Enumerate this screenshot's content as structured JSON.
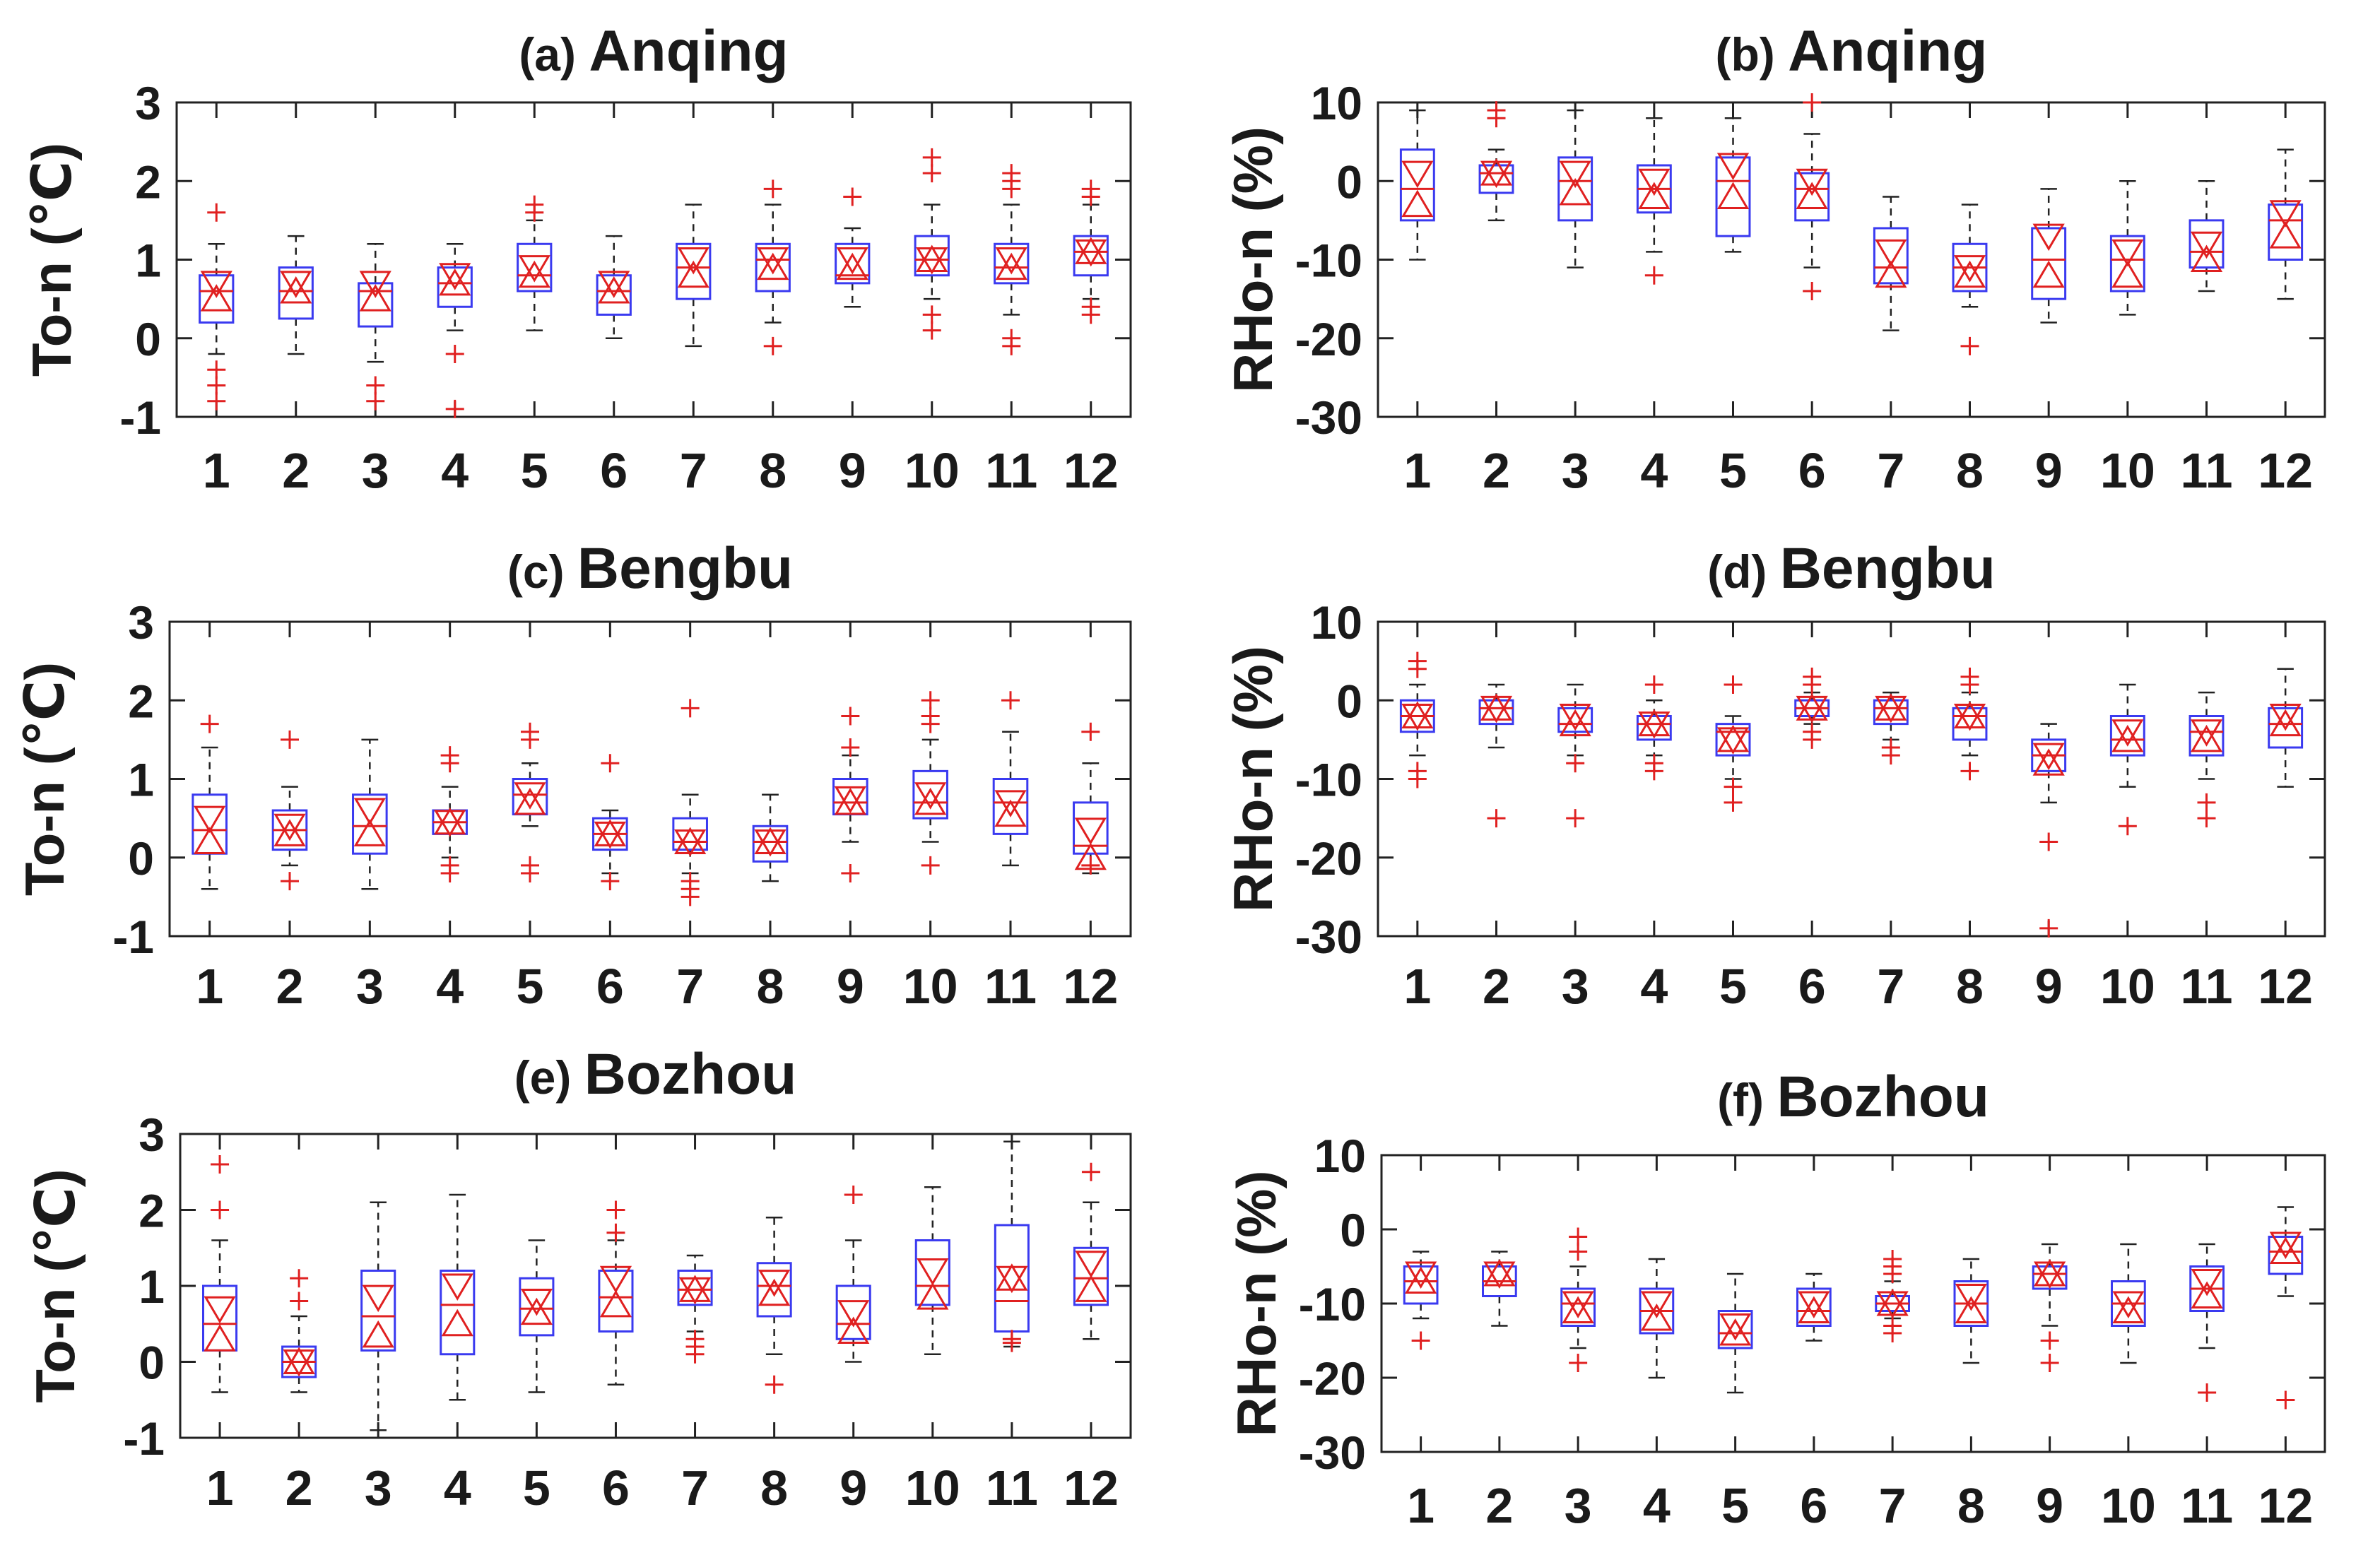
{
  "colors": {
    "box": "#3a3af0",
    "median": "#e02020",
    "outlier": "#e02020",
    "whisker": "#222222",
    "axis": "#222222"
  },
  "chart_data": [
    {
      "type": "box",
      "panel": "(a)",
      "station": "Anqing",
      "ylabel": "To-n (℃)",
      "ylim": [
        -1,
        3
      ],
      "yticks": [
        "-1",
        "0",
        "1",
        "2",
        "3"
      ],
      "categories": [
        "1",
        "2",
        "3",
        "4",
        "5",
        "6",
        "7",
        "8",
        "9",
        "10",
        "11",
        "12"
      ],
      "boxes": [
        {
          "q1": 0.2,
          "med": 0.6,
          "q3": 0.8,
          "lo": -0.2,
          "hi": 1.2,
          "mean": 0.5,
          "up": 0.7,
          "out": [
            1.6,
            -0.4,
            -0.6,
            -0.8
          ]
        },
        {
          "q1": 0.25,
          "med": 0.6,
          "q3": 0.9,
          "lo": -0.2,
          "hi": 1.3,
          "mean": 0.6,
          "up": 0.7,
          "out": []
        },
        {
          "q1": 0.15,
          "med": 0.6,
          "q3": 0.7,
          "lo": -0.3,
          "hi": 1.2,
          "mean": 0.5,
          "up": 0.7,
          "out": [
            -0.6,
            -0.8
          ]
        },
        {
          "q1": 0.4,
          "med": 0.7,
          "q3": 0.9,
          "lo": 0.1,
          "hi": 1.2,
          "mean": 0.7,
          "up": 0.8,
          "out": [
            -0.2,
            -0.9
          ]
        },
        {
          "q1": 0.6,
          "med": 0.8,
          "q3": 1.2,
          "lo": 0.1,
          "hi": 1.5,
          "mean": 0.8,
          "up": 0.9,
          "out": [
            1.6,
            1.7
          ]
        },
        {
          "q1": 0.3,
          "med": 0.6,
          "q3": 0.8,
          "lo": 0.0,
          "hi": 1.3,
          "mean": 0.6,
          "up": 0.7,
          "out": []
        },
        {
          "q1": 0.5,
          "med": 0.9,
          "q3": 1.2,
          "lo": -0.1,
          "hi": 1.7,
          "mean": 0.8,
          "up": 1.0,
          "out": []
        },
        {
          "q1": 0.6,
          "med": 1.0,
          "q3": 1.2,
          "lo": 0.2,
          "hi": 1.7,
          "mean": 0.9,
          "up": 1.0,
          "out": [
            1.9,
            -0.1
          ]
        },
        {
          "q1": 0.7,
          "med": 0.8,
          "q3": 1.2,
          "lo": 0.4,
          "hi": 1.4,
          "mean": 0.9,
          "up": 1.0,
          "out": [
            1.8
          ]
        },
        {
          "q1": 0.8,
          "med": 1.0,
          "q3": 1.3,
          "lo": 0.5,
          "hi": 1.7,
          "mean": 1.0,
          "up": 1.0,
          "out": [
            2.3,
            2.1,
            0.3,
            0.1
          ]
        },
        {
          "q1": 0.7,
          "med": 0.9,
          "q3": 1.2,
          "lo": 0.3,
          "hi": 1.7,
          "mean": 0.9,
          "up": 1.0,
          "out": [
            2.1,
            2.0,
            1.9,
            0.0,
            -0.1
          ]
        },
        {
          "q1": 0.8,
          "med": 1.1,
          "q3": 1.3,
          "lo": 0.5,
          "hi": 1.7,
          "mean": 1.1,
          "up": 1.1,
          "out": [
            1.9,
            1.8,
            0.4,
            0.3
          ]
        }
      ]
    },
    {
      "type": "box",
      "panel": "(b)",
      "station": "Anqing",
      "ylabel": "RHo-n (%)",
      "ylim": [
        -30,
        10
      ],
      "yticks": [
        "-30",
        "-20",
        "-10",
        "0",
        "10"
      ],
      "categories": [
        "1",
        "2",
        "3",
        "4",
        "5",
        "6",
        "7",
        "8",
        "9",
        "10",
        "11",
        "12"
      ],
      "boxes": [
        {
          "q1": -5,
          "med": -1,
          "q3": 4,
          "lo": -10,
          "hi": 9,
          "mean": -3,
          "up": 1,
          "out": []
        },
        {
          "q1": -1.5,
          "med": 1,
          "q3": 2,
          "lo": -5,
          "hi": 4,
          "mean": 1,
          "up": 1,
          "out": [
            8,
            9
          ]
        },
        {
          "q1": -5,
          "med": 0,
          "q3": 3,
          "lo": -11,
          "hi": 9,
          "mean": -1.5,
          "up": 1,
          "out": []
        },
        {
          "q1": -4,
          "med": -1,
          "q3": 2,
          "lo": -9,
          "hi": 8,
          "mean": -2,
          "up": 0,
          "out": [
            -12
          ]
        },
        {
          "q1": -7,
          "med": 0,
          "q3": 3,
          "lo": -9,
          "hi": 8,
          "mean": -2,
          "up": 2,
          "out": []
        },
        {
          "q1": -5,
          "med": -1,
          "q3": 1,
          "lo": -11,
          "hi": 6,
          "mean": -2,
          "up": 0,
          "out": [
            -14,
            10
          ]
        },
        {
          "q1": -13,
          "med": -11,
          "q3": -6,
          "lo": -19,
          "hi": -2,
          "mean": -12,
          "up": -9,
          "out": []
        },
        {
          "q1": -14,
          "med": -11,
          "q3": -8,
          "lo": -16,
          "hi": -3,
          "mean": -12,
          "up": -11,
          "out": [
            -21
          ]
        },
        {
          "q1": -15,
          "med": -10,
          "q3": -6,
          "lo": -18,
          "hi": -1,
          "mean": -12,
          "up": -7,
          "out": []
        },
        {
          "q1": -14,
          "med": -10,
          "q3": -7,
          "lo": -17,
          "hi": 0,
          "mean": -12,
          "up": -9,
          "out": []
        },
        {
          "q1": -11,
          "med": -9,
          "q3": -5,
          "lo": -14,
          "hi": 0,
          "mean": -10,
          "up": -8,
          "out": []
        },
        {
          "q1": -10,
          "med": -5,
          "q3": -3,
          "lo": -15,
          "hi": 4,
          "mean": -7,
          "up": -4,
          "out": []
        }
      ]
    },
    {
      "type": "box",
      "panel": "(c)",
      "station": "Bengbu",
      "ylabel": "To-n (℃)",
      "ylim": [
        -1,
        3
      ],
      "yticks": [
        "-1",
        "0",
        "1",
        "2",
        "3"
      ],
      "categories": [
        "1",
        "2",
        "3",
        "4",
        "5",
        "6",
        "7",
        "8",
        "9",
        "10",
        "11",
        "12"
      ],
      "boxes": [
        {
          "q1": 0.05,
          "med": 0.35,
          "q3": 0.8,
          "lo": -0.4,
          "hi": 1.4,
          "mean": 0.2,
          "up": 0.5,
          "out": [
            1.7
          ]
        },
        {
          "q1": 0.1,
          "med": 0.35,
          "q3": 0.6,
          "lo": -0.1,
          "hi": 0.9,
          "mean": 0.3,
          "up": 0.4,
          "out": [
            1.5,
            -0.3
          ]
        },
        {
          "q1": 0.05,
          "med": 0.4,
          "q3": 0.8,
          "lo": -0.4,
          "hi": 1.5,
          "mean": 0.3,
          "up": 0.6,
          "out": []
        },
        {
          "q1": 0.3,
          "med": 0.45,
          "q3": 0.6,
          "lo": 0.0,
          "hi": 0.9,
          "mean": 0.45,
          "up": 0.45,
          "out": [
            1.3,
            1.2,
            -0.1,
            -0.2
          ]
        },
        {
          "q1": 0.55,
          "med": 0.8,
          "q3": 1.0,
          "lo": 0.4,
          "hi": 1.2,
          "mean": 0.7,
          "up": 0.8,
          "out": [
            1.6,
            1.5,
            -0.1,
            -0.2
          ]
        },
        {
          "q1": 0.1,
          "med": 0.3,
          "q3": 0.5,
          "lo": -0.2,
          "hi": 0.6,
          "mean": 0.3,
          "up": 0.3,
          "out": [
            1.2,
            -0.3
          ]
        },
        {
          "q1": 0.1,
          "med": 0.2,
          "q3": 0.5,
          "lo": -0.2,
          "hi": 0.8,
          "mean": 0.2,
          "up": 0.2,
          "out": [
            1.9,
            -0.3,
            -0.4,
            -0.5
          ]
        },
        {
          "q1": -0.05,
          "med": 0.2,
          "q3": 0.4,
          "lo": -0.3,
          "hi": 0.8,
          "mean": 0.2,
          "up": 0.2,
          "out": []
        },
        {
          "q1": 0.55,
          "med": 0.7,
          "q3": 1.0,
          "lo": 0.2,
          "hi": 1.3,
          "mean": 0.7,
          "up": 0.75,
          "out": [
            1.8,
            1.4,
            -0.2
          ]
        },
        {
          "q1": 0.5,
          "med": 0.7,
          "q3": 1.1,
          "lo": 0.2,
          "hi": 1.5,
          "mean": 0.7,
          "up": 0.8,
          "out": [
            2.0,
            1.8,
            1.7,
            -0.1
          ]
        },
        {
          "q1": 0.3,
          "med": 0.7,
          "q3": 1.0,
          "lo": -0.1,
          "hi": 1.6,
          "mean": 0.55,
          "up": 0.7,
          "out": [
            2.0
          ]
        },
        {
          "q1": 0.05,
          "med": 0.15,
          "q3": 0.7,
          "lo": -0.2,
          "hi": 1.2,
          "mean": 0.0,
          "up": 0.35,
          "out": [
            1.6,
            -0.1
          ]
        }
      ]
    },
    {
      "type": "box",
      "panel": "(d)",
      "station": "Bengbu",
      "ylabel": "RHo-n (%)",
      "ylim": [
        -30,
        10
      ],
      "yticks": [
        "-30",
        "-20",
        "-10",
        "0",
        "10"
      ],
      "categories": [
        "1",
        "2",
        "3",
        "4",
        "5",
        "6",
        "7",
        "8",
        "9",
        "10",
        "11",
        "12"
      ],
      "boxes": [
        {
          "q1": -4,
          "med": -2,
          "q3": 0,
          "lo": -7,
          "hi": 2,
          "mean": -2,
          "up": -2,
          "out": [
            5,
            4,
            -9,
            -10
          ]
        },
        {
          "q1": -3,
          "med": -1,
          "q3": 0,
          "lo": -6,
          "hi": 2,
          "mean": -1,
          "up": -1,
          "out": [
            -15
          ]
        },
        {
          "q1": -4,
          "med": -3,
          "q3": -1,
          "lo": -7,
          "hi": 2,
          "mean": -3,
          "up": -2,
          "out": [
            -8,
            -15
          ]
        },
        {
          "q1": -5,
          "med": -3,
          "q3": -2,
          "lo": -7,
          "hi": 0,
          "mean": -3,
          "up": -3,
          "out": [
            2,
            -8,
            -9
          ]
        },
        {
          "q1": -7,
          "med": -4,
          "q3": -3,
          "lo": -10,
          "hi": -2,
          "mean": -5,
          "up": -5,
          "out": [
            2,
            -11,
            -13
          ]
        },
        {
          "q1": -2,
          "med": -1,
          "q3": 0,
          "lo": -3,
          "hi": 1,
          "mean": -1,
          "up": -1,
          "out": [
            3,
            2,
            -4,
            -5
          ]
        },
        {
          "q1": -3,
          "med": -1,
          "q3": 0,
          "lo": -5,
          "hi": 1,
          "mean": -1,
          "up": -1,
          "out": [
            -6,
            -7
          ]
        },
        {
          "q1": -5,
          "med": -2,
          "q3": -1,
          "lo": -7,
          "hi": 1,
          "mean": -2,
          "up": -2,
          "out": [
            3,
            2,
            -9
          ]
        },
        {
          "q1": -9,
          "med": -7,
          "q3": -5,
          "lo": -13,
          "hi": -3,
          "mean": -8,
          "up": -7,
          "out": [
            -18,
            -29
          ]
        },
        {
          "q1": -7,
          "med": -5,
          "q3": -2,
          "lo": -11,
          "hi": 2,
          "mean": -5,
          "up": -4,
          "out": [
            -16
          ]
        },
        {
          "q1": -7,
          "med": -4,
          "q3": -2,
          "lo": -10,
          "hi": 1,
          "mean": -5,
          "up": -4,
          "out": [
            -13,
            -15
          ]
        },
        {
          "q1": -6,
          "med": -3,
          "q3": -1,
          "lo": -11,
          "hi": 4,
          "mean": -3,
          "up": -2,
          "out": []
        }
      ]
    },
    {
      "type": "box",
      "panel": "(e)",
      "station": "Bozhou",
      "ylabel": "To-n (℃)",
      "ylim": [
        -1,
        3
      ],
      "yticks": [
        "-1",
        "0",
        "1",
        "2",
        "3"
      ],
      "categories": [
        "1",
        "2",
        "3",
        "4",
        "5",
        "6",
        "7",
        "8",
        "9",
        "10",
        "11",
        "12"
      ],
      "boxes": [
        {
          "q1": 0.15,
          "med": 0.5,
          "q3": 1.0,
          "lo": -0.4,
          "hi": 1.6,
          "mean": 0.3,
          "up": 0.7,
          "out": [
            2.6,
            2.0
          ]
        },
        {
          "q1": -0.2,
          "med": 0.0,
          "q3": 0.2,
          "lo": -0.4,
          "hi": 0.6,
          "mean": 0.0,
          "up": 0.0,
          "out": [
            1.1,
            0.8
          ]
        },
        {
          "q1": 0.15,
          "med": 0.6,
          "q3": 1.2,
          "lo": -0.9,
          "hi": 2.1,
          "mean": 0.35,
          "up": 0.85,
          "out": []
        },
        {
          "q1": 0.1,
          "med": 0.75,
          "q3": 1.2,
          "lo": -0.5,
          "hi": 2.2,
          "mean": 0.5,
          "up": 1.0,
          "out": []
        },
        {
          "q1": 0.35,
          "med": 0.7,
          "q3": 1.1,
          "lo": -0.4,
          "hi": 1.6,
          "mean": 0.65,
          "up": 0.8,
          "out": []
        },
        {
          "q1": 0.4,
          "med": 0.85,
          "q3": 1.2,
          "lo": -0.3,
          "hi": 1.6,
          "mean": 0.75,
          "up": 1.1,
          "out": [
            2.0,
            1.7
          ]
        },
        {
          "q1": 0.75,
          "med": 0.95,
          "q3": 1.2,
          "lo": 0.4,
          "hi": 1.4,
          "mean": 0.95,
          "up": 0.95,
          "out": [
            0.3,
            0.2,
            0.1
          ]
        },
        {
          "q1": 0.6,
          "med": 1.0,
          "q3": 1.3,
          "lo": 0.1,
          "hi": 1.9,
          "mean": 0.9,
          "up": 1.05,
          "out": [
            -0.3
          ]
        },
        {
          "q1": 0.3,
          "med": 0.5,
          "q3": 1.0,
          "lo": 0.0,
          "hi": 1.6,
          "mean": 0.4,
          "up": 0.65,
          "out": [
            2.2
          ]
        },
        {
          "q1": 0.75,
          "med": 1.0,
          "q3": 1.6,
          "lo": 0.1,
          "hi": 2.3,
          "mean": 0.85,
          "up": 1.2,
          "out": []
        },
        {
          "q1": 0.4,
          "med": 0.8,
          "q3": 1.8,
          "lo": 0.2,
          "hi": 2.9,
          "mean": 1.1,
          "up": 1.1,
          "out": [
            0.3,
            0.25
          ]
        },
        {
          "q1": 0.75,
          "med": 1.1,
          "q3": 1.5,
          "lo": 0.3,
          "hi": 2.1,
          "mean": 0.95,
          "up": 1.3,
          "out": [
            2.5
          ]
        }
      ]
    },
    {
      "type": "box",
      "panel": "(f)",
      "station": "Bozhou",
      "ylabel": "RHo-n (%)",
      "ylim": [
        -30,
        10
      ],
      "yticks": [
        "-30",
        "-20",
        "-10",
        "0",
        "10"
      ],
      "categories": [
        "1",
        "2",
        "3",
        "4",
        "5",
        "6",
        "7",
        "8",
        "9",
        "10",
        "11",
        "12"
      ],
      "boxes": [
        {
          "q1": -10,
          "med": -7,
          "q3": -5,
          "lo": -12,
          "hi": -3,
          "mean": -7,
          "up": -6,
          "out": [
            -15
          ]
        },
        {
          "q1": -9,
          "med": -7,
          "q3": -5,
          "lo": -13,
          "hi": -3,
          "mean": -6,
          "up": -6,
          "out": []
        },
        {
          "q1": -13,
          "med": -10,
          "q3": -8,
          "lo": -16,
          "hi": -5,
          "mean": -11,
          "up": -10,
          "out": [
            -1,
            -3,
            -18
          ]
        },
        {
          "q1": -14,
          "med": -11,
          "q3": -8,
          "lo": -20,
          "hi": -4,
          "mean": -12,
          "up": -10,
          "out": []
        },
        {
          "q1": -16,
          "med": -14,
          "q3": -11,
          "lo": -22,
          "hi": -6,
          "mean": -14,
          "up": -13,
          "out": []
        },
        {
          "q1": -13,
          "med": -11,
          "q3": -8,
          "lo": -15,
          "hi": -6,
          "mean": -11,
          "up": -10,
          "out": []
        },
        {
          "q1": -11,
          "med": -10,
          "q3": -9,
          "lo": -12,
          "hi": -7,
          "mean": -10,
          "up": -10,
          "out": [
            -4,
            -5,
            -6,
            -13,
            -14
          ]
        },
        {
          "q1": -13,
          "med": -10,
          "q3": -7,
          "lo": -18,
          "hi": -4,
          "mean": -11,
          "up": -9,
          "out": []
        },
        {
          "q1": -8,
          "med": -6,
          "q3": -5,
          "lo": -13,
          "hi": -2,
          "mean": -6,
          "up": -6,
          "out": [
            -15,
            -18
          ]
        },
        {
          "q1": -13,
          "med": -10,
          "q3": -7,
          "lo": -18,
          "hi": -2,
          "mean": -11,
          "up": -10,
          "out": []
        },
        {
          "q1": -11,
          "med": -8,
          "q3": -5,
          "lo": -16,
          "hi": -2,
          "mean": -9,
          "up": -7,
          "out": [
            -22
          ]
        },
        {
          "q1": -6,
          "med": -3,
          "q3": -1,
          "lo": -9,
          "hi": 3,
          "mean": -3,
          "up": -2,
          "out": [
            -23
          ]
        }
      ]
    }
  ]
}
